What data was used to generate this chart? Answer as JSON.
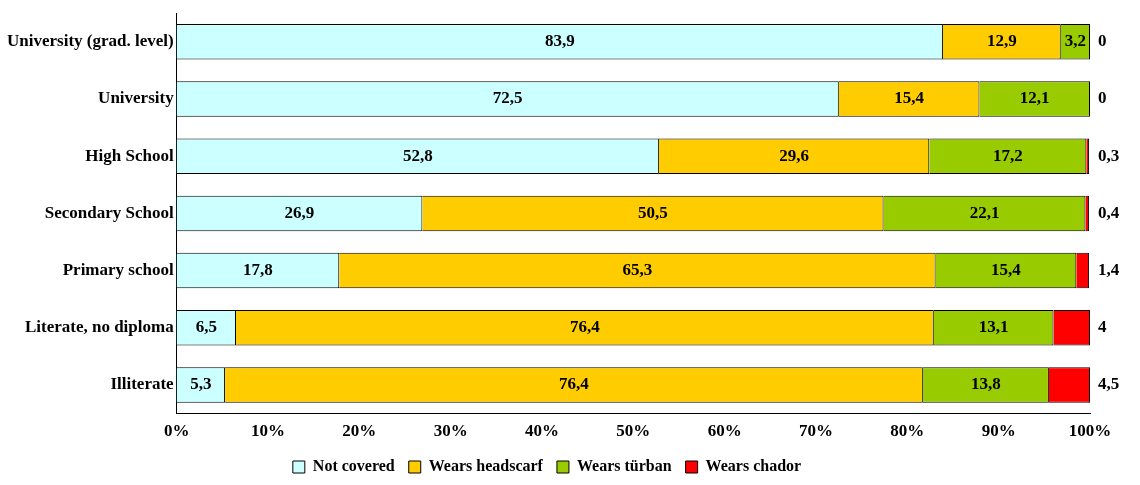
{
  "chart_data": {
    "type": "bar",
    "orientation": "horizontal",
    "stacked": true,
    "categories": [
      "University (grad. level)",
      "University",
      "High School",
      "Secondary School",
      "Primary school",
      "Literate, no diploma",
      "Illiterate"
    ],
    "series": [
      {
        "name": "Not covered",
        "color": "#ccffff",
        "values": [
          83.9,
          72.5,
          52.8,
          26.9,
          17.8,
          6.5,
          5.3
        ],
        "value_labels": [
          "83,9",
          "72,5",
          "52,8",
          "26,9",
          "17,8",
          "6,5",
          "5,3"
        ]
      },
      {
        "name": "Wears headscarf",
        "color": "#ffcc00",
        "values": [
          12.9,
          15.4,
          29.6,
          50.5,
          65.3,
          76.4,
          76.4
        ],
        "value_labels": [
          "12,9",
          "15,4",
          "29,6",
          "50,5",
          "65,3",
          "76,4",
          "76,4"
        ]
      },
      {
        "name": "Wears türban",
        "color": "#99cc00",
        "values": [
          3.2,
          12.1,
          17.2,
          22.1,
          15.4,
          13.1,
          13.8
        ],
        "value_labels": [
          "3,2",
          "12,1",
          "17,2",
          "22,1",
          "15,4",
          "13,1",
          "13,8"
        ]
      },
      {
        "name": "Wears chador",
        "color": "#ff0000",
        "values": [
          0,
          0,
          0.3,
          0.4,
          1.4,
          4,
          4.5
        ],
        "value_labels": [
          "0",
          "0",
          "0,3",
          "0,4",
          "1,4",
          "4",
          "4,5"
        ]
      }
    ],
    "xlim": [
      0,
      100
    ],
    "xticks": [
      {
        "value": 0,
        "label": "0%"
      },
      {
        "value": 10,
        "label": "10%"
      },
      {
        "value": 20,
        "label": "20%"
      },
      {
        "value": 30,
        "label": "30%"
      },
      {
        "value": 40,
        "label": "40%"
      },
      {
        "value": 50,
        "label": "50%"
      },
      {
        "value": 60,
        "label": "60%"
      },
      {
        "value": 70,
        "label": "70%"
      },
      {
        "value": 80,
        "label": "80%"
      },
      {
        "value": 90,
        "label": "90%"
      },
      {
        "value": 100,
        "label": "100%"
      }
    ],
    "grid": false,
    "legend": "bottom"
  }
}
